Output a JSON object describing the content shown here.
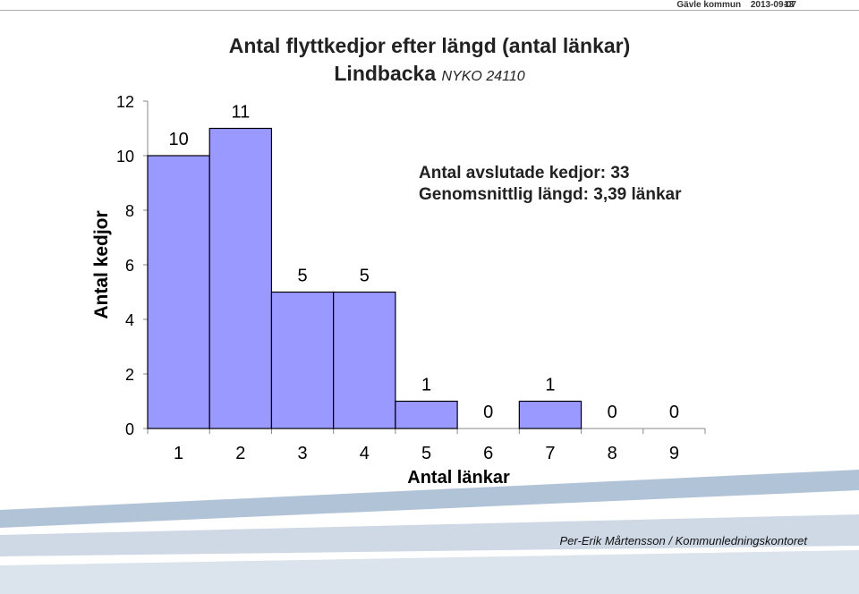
{
  "header": {
    "org": "Gävle kommun",
    "date": "2013-09-07",
    "page": "13"
  },
  "title": "Antal flyttkedjor efter längd (antal länkar)",
  "subtitle": {
    "place": "Lindbacka",
    "code": "NYKO 24110"
  },
  "stats": {
    "line1": "Antal avslutade kedjor: 33",
    "line2": "Genomsnittlig längd: 3,39 länkar"
  },
  "footer": {
    "author": "Per-Erik Mårtensson / Kommunledningskontoret"
  },
  "colors": {
    "bar": "#9999ff",
    "bar_stroke": "#000000",
    "band": "#a9bcd3"
  },
  "chart_data": {
    "type": "bar",
    "categories": [
      "1",
      "2",
      "3",
      "4",
      "5",
      "6",
      "7",
      "8",
      "9"
    ],
    "values": [
      10,
      11,
      5,
      5,
      1,
      0,
      1,
      0,
      0
    ],
    "xlabel": "Antal länkar",
    "ylabel": "Antal kedjor",
    "ylim": [
      0,
      12
    ],
    "yticks": [
      "0",
      "2",
      "4",
      "6",
      "8",
      "10",
      "12"
    ],
    "data_labels": true,
    "grid": false
  }
}
